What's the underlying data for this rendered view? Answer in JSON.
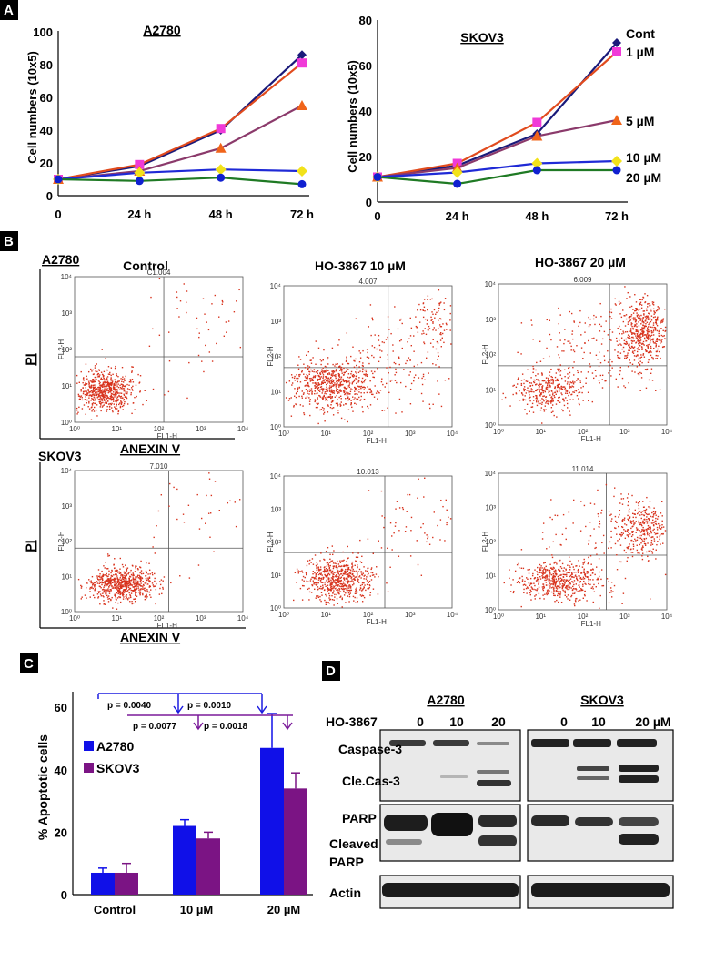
{
  "panels": {
    "A": {
      "letter": "A",
      "charts": [
        {
          "id": "A2780",
          "title": "A2780",
          "ylabel": "Cell numbers (10x5)",
          "yticks": [
            "0",
            "20",
            "40",
            "60",
            "80",
            "100"
          ],
          "xticks": [
            "0",
            "24 h",
            "48 h",
            "72 h"
          ]
        },
        {
          "id": "SKOV3",
          "title": "SKOV3",
          "ylabel": "Cell numbers (10x5)",
          "yticks": [
            "0",
            "20",
            "40",
            "60",
            "80"
          ],
          "xticks": [
            "0",
            "24 h",
            "48 h",
            "72 h"
          ],
          "legend": [
            "Cont",
            "1 µM",
            "5 µM",
            "10 µM",
            "20 µM"
          ]
        }
      ]
    },
    "B": {
      "letter": "B",
      "col_titles": [
        "Control",
        "HO-3867 10 µM",
        "HO-3867 20 µM"
      ],
      "row_labels": [
        "A2780",
        "SKOV3"
      ],
      "ylabel": "PI",
      "xlabel": "ANEXIN V",
      "file_ids": [
        "C1.004",
        "4.007",
        "6.009",
        "7.010",
        "10.013",
        "11.014"
      ],
      "axis_names": {
        "y": "FL2-H",
        "x": "FL1-H"
      },
      "log_ticks": [
        "10⁰",
        "10¹",
        "10²",
        "10³",
        "10⁴"
      ]
    },
    "C": {
      "letter": "C",
      "ylabel": "% Apoptotic cells",
      "yticks": [
        "0",
        "20",
        "40",
        "60"
      ],
      "categories": [
        "Control",
        "10 µM",
        "20 µM"
      ],
      "legend": [
        "A2780",
        "SKOV3"
      ],
      "pvalues": [
        "p = 0.0040",
        "p = 0.0010",
        "p = 0.0077",
        "p = 0.0018"
      ]
    },
    "D": {
      "letter": "D",
      "cell_lines": [
        "A2780",
        "SKOV3"
      ],
      "treatment_label": "HO-3867",
      "doses_a": [
        "0",
        "10",
        "20"
      ],
      "doses_b": [
        "0",
        "10",
        "20 µM"
      ],
      "bands": [
        "Caspase-3",
        "Cle.Cas-3",
        "PARP",
        "Cleaved",
        "PARP",
        "Actin"
      ]
    }
  },
  "chart_data": [
    {
      "type": "line",
      "title": "A2780",
      "xlabel": "",
      "ylabel": "Cell numbers (10x5)",
      "categories": [
        "0",
        "24 h",
        "48 h",
        "72 h"
      ],
      "ylim": [
        0,
        100
      ],
      "series": [
        {
          "name": "Cont",
          "color": "#1a1a7a",
          "marker": "diamond",
          "values": [
            10,
            18,
            40,
            86
          ]
        },
        {
          "name": "1 µM",
          "color": "#e14b1e",
          "marker": "square",
          "values": [
            10,
            19,
            41,
            81
          ]
        },
        {
          "name": "5 µM",
          "color": "#8b3a6b",
          "marker": "triangle",
          "values": [
            10,
            15,
            29,
            55
          ]
        },
        {
          "name": "10 µM",
          "color": "#1f2ad6",
          "marker": "circle",
          "values": [
            10,
            14,
            16,
            15
          ]
        },
        {
          "name": "20 µM",
          "color": "#1f7a24",
          "marker": "circle",
          "values": [
            10,
            9,
            11,
            7
          ]
        }
      ]
    },
    {
      "type": "line",
      "title": "SKOV3",
      "xlabel": "",
      "ylabel": "Cell numbers (10x5)",
      "categories": [
        "0",
        "24 h",
        "48 h",
        "72 h"
      ],
      "ylim": [
        0,
        80
      ],
      "series": [
        {
          "name": "Cont",
          "color": "#1a1a7a",
          "marker": "diamond",
          "values": [
            11,
            16,
            30,
            70
          ]
        },
        {
          "name": "1 µM",
          "color": "#e14b1e",
          "marker": "square",
          "values": [
            11,
            17,
            35,
            66
          ]
        },
        {
          "name": "5 µM",
          "color": "#8b3a6b",
          "marker": "triangle",
          "values": [
            11,
            15,
            29,
            36
          ]
        },
        {
          "name": "10 µM",
          "color": "#1f2ad6",
          "marker": "circle",
          "values": [
            11,
            13,
            17,
            18
          ]
        },
        {
          "name": "20 µM",
          "color": "#1f7a24",
          "marker": "circle",
          "values": [
            11,
            8,
            14,
            14
          ]
        }
      ]
    },
    {
      "type": "bar",
      "title": "",
      "xlabel": "",
      "ylabel": "% Apoptotic cells",
      "categories": [
        "Control",
        "10 µM",
        "20 µM"
      ],
      "ylim": [
        0,
        65
      ],
      "series": [
        {
          "name": "A2780",
          "color": "#1010e8",
          "values": [
            7,
            22,
            47
          ],
          "errors": [
            1.5,
            2,
            11
          ]
        },
        {
          "name": "SKOV3",
          "color": "#7b1484",
          "values": [
            7,
            18,
            34
          ],
          "errors": [
            3,
            2,
            5
          ]
        }
      ]
    }
  ]
}
